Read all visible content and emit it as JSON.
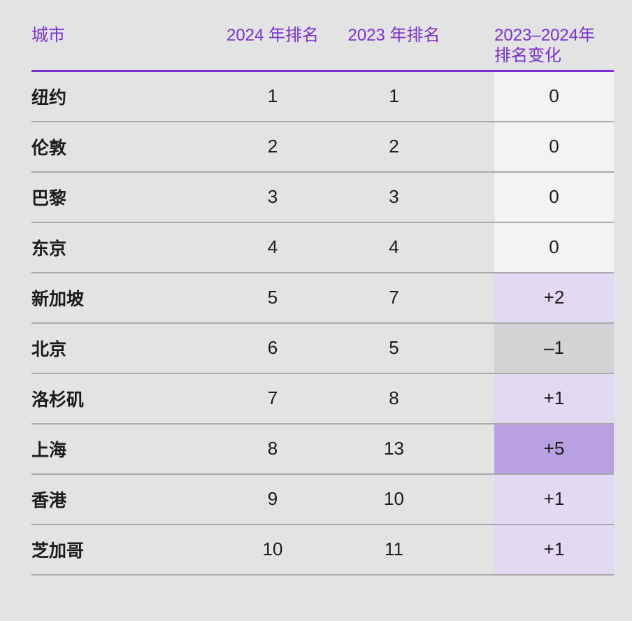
{
  "colors": {
    "accent": "#7a30d2",
    "page_bg": "#e4e3e4",
    "text": "#1b1b1b",
    "row_divider": "#aaa9ab",
    "cell_zero": "#f4f3f4",
    "cell_up": "#e4d9f3",
    "cell_down": "#d3d2d4",
    "cell_up_strong": "#b9a0e3"
  },
  "table": {
    "header": {
      "city": "城市",
      "rank2024": "2024 年排名",
      "rank2023": "2023 年排名",
      "change_line1": "2023–2024年",
      "change_line2": "排名变化"
    },
    "rows": [
      {
        "city": "纽约",
        "rank2024": "1",
        "rank2023": "1",
        "change": "0",
        "change_type": "zero"
      },
      {
        "city": "伦敦",
        "rank2024": "2",
        "rank2023": "2",
        "change": "0",
        "change_type": "zero"
      },
      {
        "city": "巴黎",
        "rank2024": "3",
        "rank2023": "3",
        "change": "0",
        "change_type": "zero"
      },
      {
        "city": "东京",
        "rank2024": "4",
        "rank2023": "4",
        "change": "0",
        "change_type": "zero"
      },
      {
        "city": "新加坡",
        "rank2024": "5",
        "rank2023": "7",
        "change": "+2",
        "change_type": "up"
      },
      {
        "city": "北京",
        "rank2024": "6",
        "rank2023": "5",
        "change": "–1",
        "change_type": "down"
      },
      {
        "city": "洛杉矶",
        "rank2024": "7",
        "rank2023": "8",
        "change": "+1",
        "change_type": "up"
      },
      {
        "city": "上海",
        "rank2024": "8",
        "rank2023": "13",
        "change": "+5",
        "change_type": "up-strong"
      },
      {
        "city": "香港",
        "rank2024": "9",
        "rank2023": "10",
        "change": "+1",
        "change_type": "up"
      },
      {
        "city": "芝加哥",
        "rank2024": "10",
        "rank2023": "11",
        "change": "+1",
        "change_type": "up"
      }
    ]
  },
  "chart_data": {
    "type": "table",
    "title": "",
    "columns": [
      "城市",
      "2024 年排名",
      "2023 年排名",
      "2023–2024年排名变化"
    ],
    "rows": [
      [
        "纽约",
        1,
        1,
        0
      ],
      [
        "伦敦",
        2,
        2,
        0
      ],
      [
        "巴黎",
        3,
        3,
        0
      ],
      [
        "东京",
        4,
        4,
        0
      ],
      [
        "新加坡",
        5,
        7,
        2
      ],
      [
        "北京",
        6,
        5,
        -1
      ],
      [
        "洛杉矶",
        7,
        8,
        1
      ],
      [
        "上海",
        8,
        13,
        5
      ],
      [
        "香港",
        9,
        10,
        1
      ],
      [
        "芝加哥",
        10,
        11,
        1
      ]
    ]
  }
}
